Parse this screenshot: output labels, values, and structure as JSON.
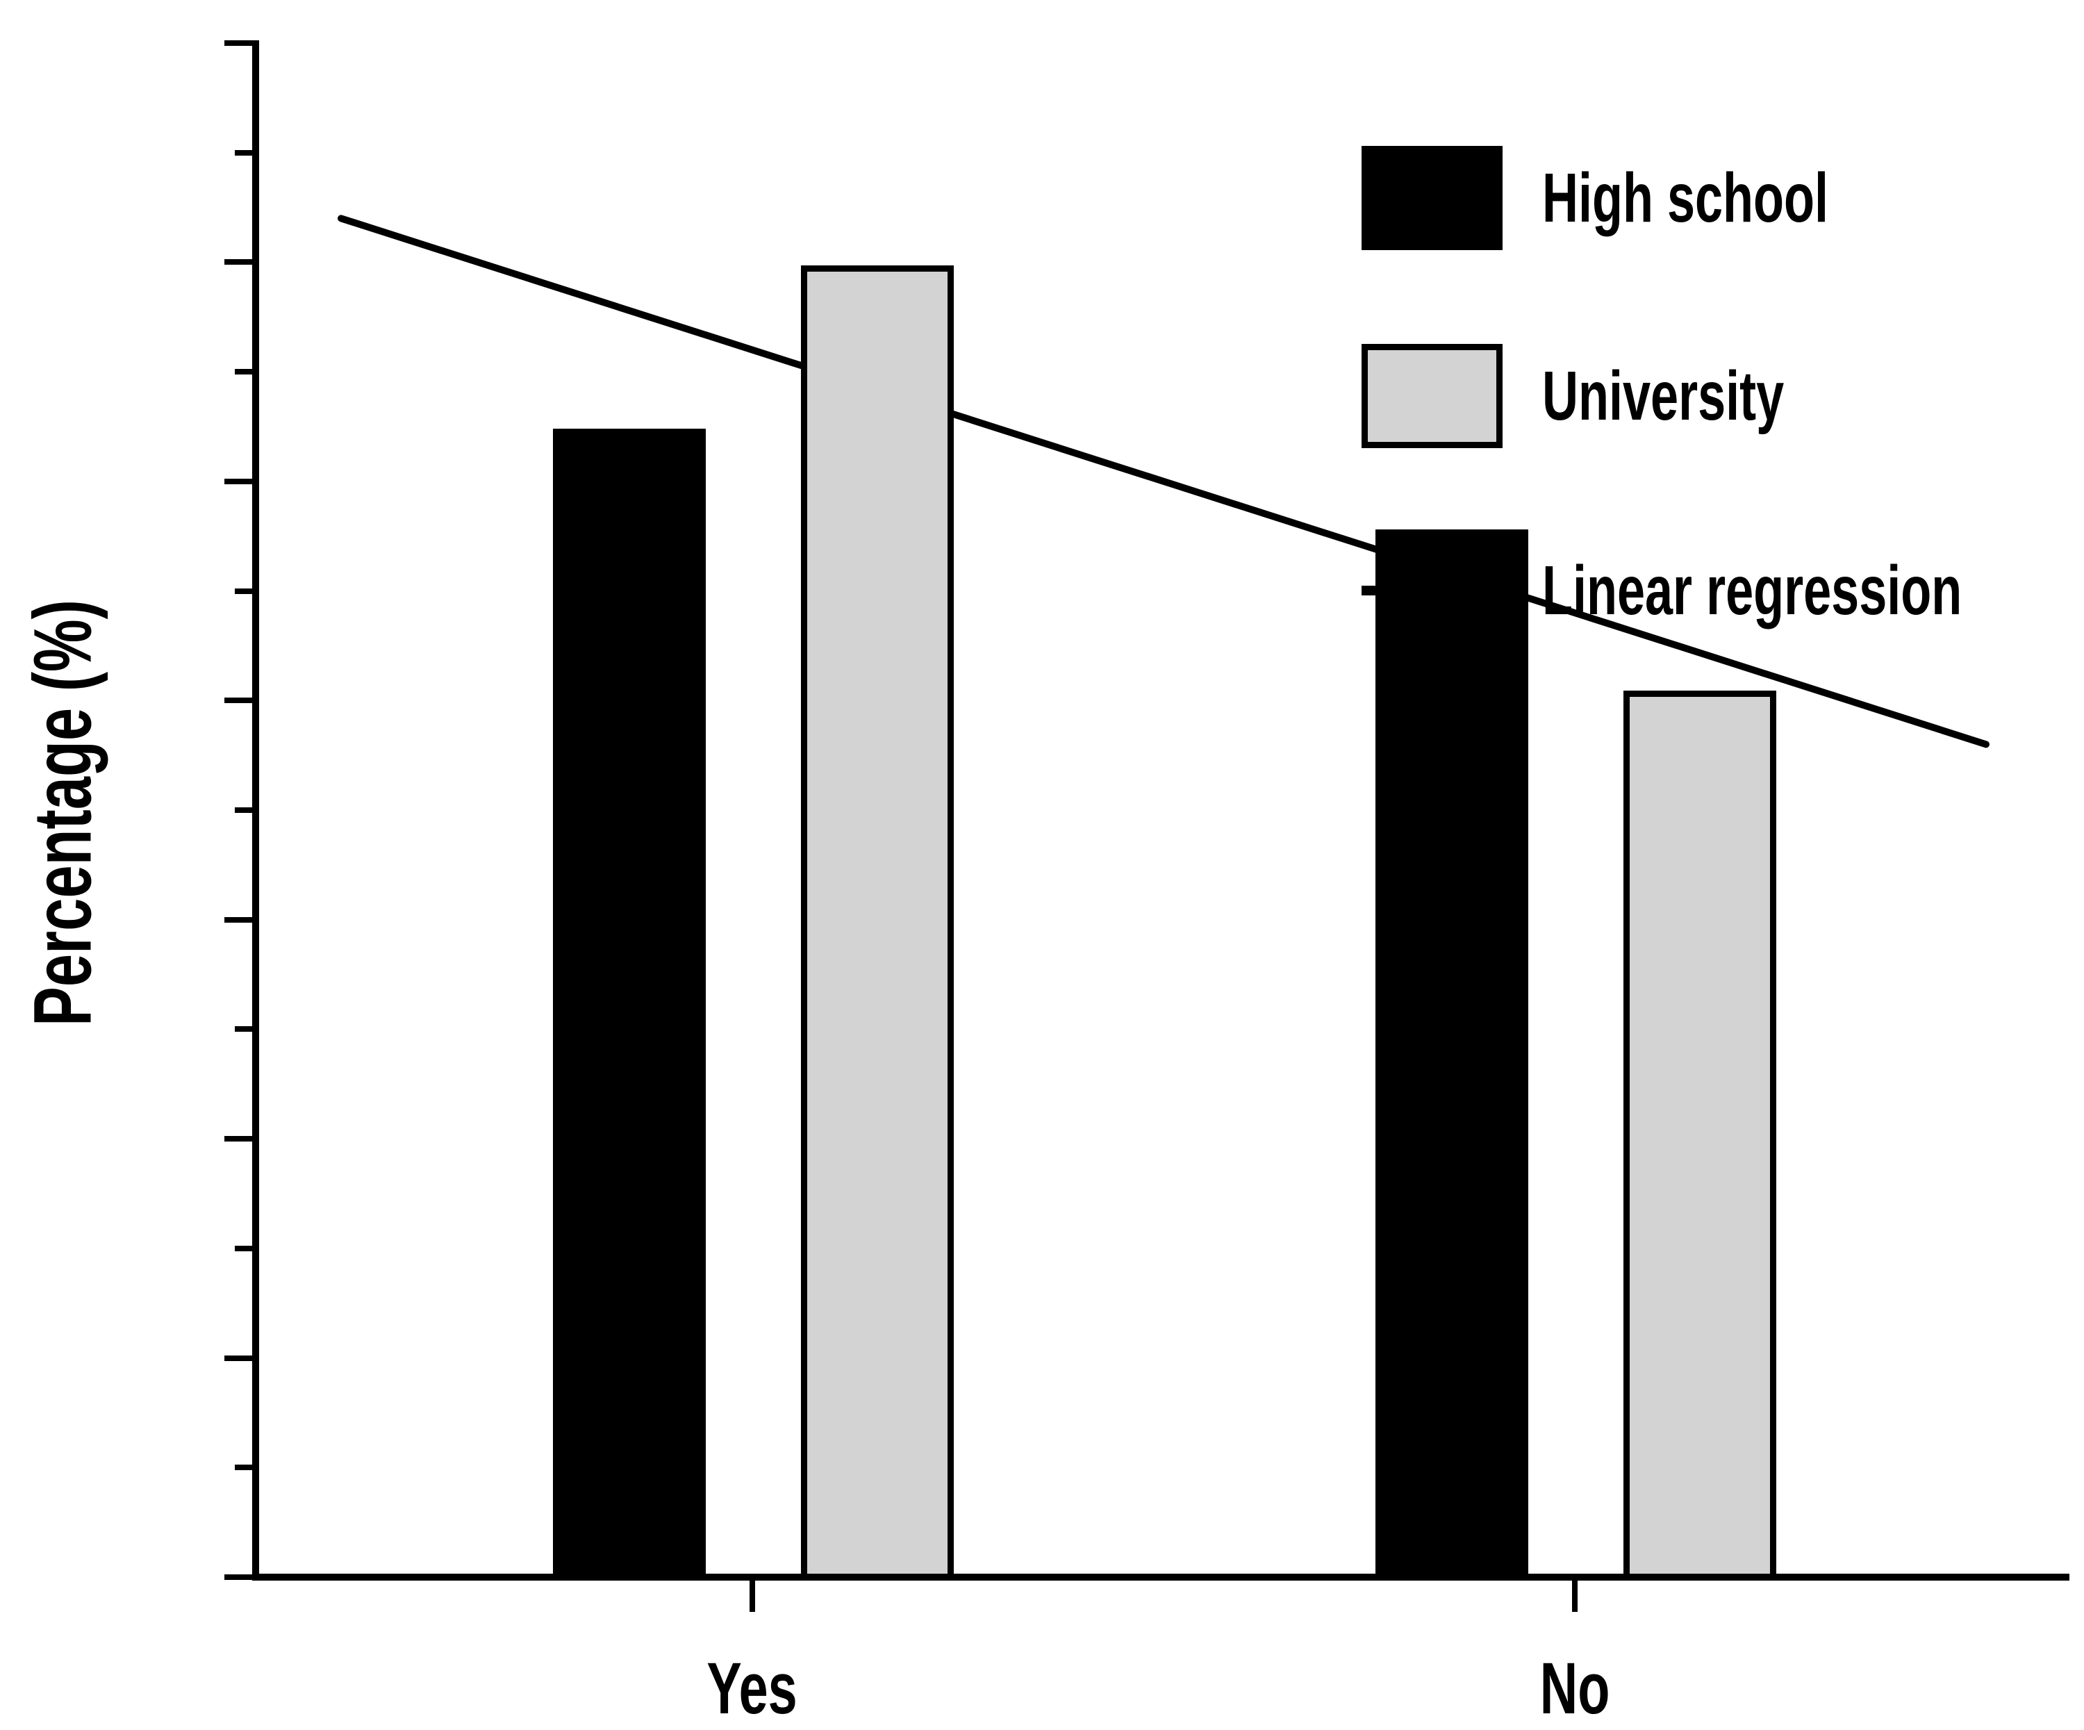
{
  "chart_data": {
    "type": "bar",
    "title": "",
    "categories": [
      "Yes",
      "No"
    ],
    "series": [
      {
        "name": "High school",
        "values": [
          52.4,
          47.8
        ],
        "fill": "#000000",
        "border": "#000000"
      },
      {
        "name": "University",
        "values": [
          59.7,
          40.3
        ],
        "fill": "#d3d3d3",
        "border": "#000000"
      }
    ],
    "regression_line": {
      "label": "Linear regression",
      "color": "#000000",
      "x_range_categories": [
        0.5,
        2.5
      ],
      "y_start": 62.0,
      "y_end": 38.0
    },
    "ylabel": "Percentage (%)",
    "xlabel": "",
    "ylim": [
      0,
      70
    ],
    "y_major_ticks": [
      0,
      10,
      20,
      30,
      40,
      50,
      60,
      70
    ],
    "y_minor_ticks": [
      5,
      15,
      25,
      35,
      45,
      55,
      65
    ],
    "legend": {
      "position": "top-right",
      "entries": [
        {
          "swatch": "filled-rect",
          "label": "High school"
        },
        {
          "swatch": "filled-rect",
          "label": "University"
        },
        {
          "swatch": "line",
          "label": "Linear regression"
        }
      ]
    },
    "grid": false,
    "background": "#ffffff"
  }
}
